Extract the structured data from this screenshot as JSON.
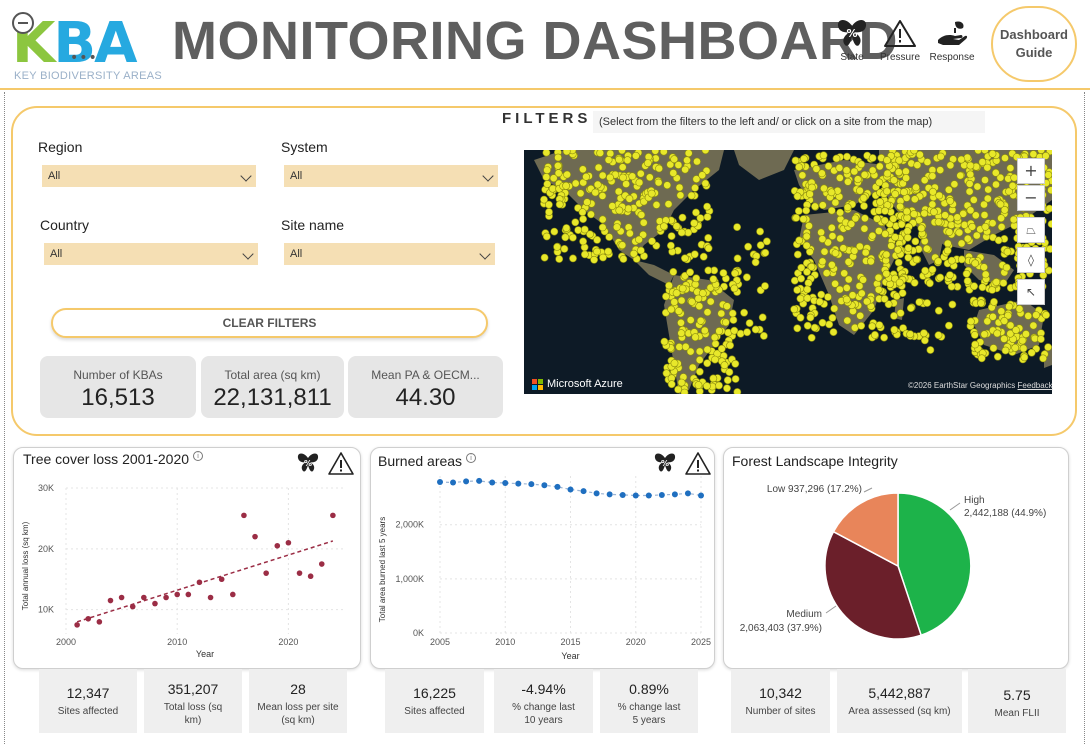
{
  "header": {
    "logo_text_k": "K",
    "logo_text_ba": "BA",
    "logo_subtitle": "KEY BIODIVERSITY AREAS",
    "title": "MONITORING DASHBOARD",
    "icons": [
      {
        "name": "butterfly-percent-icon",
        "label": "State"
      },
      {
        "name": "warning-triangle-icon",
        "label": "Pressure"
      },
      {
        "name": "hand-seedling-icon",
        "label": "Response"
      }
    ],
    "guide_line1": "Dashboard",
    "guide_line2": "Guide"
  },
  "filters": {
    "title": "FILTERS",
    "hint": "(Select from the filters to the left and/ or click on a site from the map)",
    "region_label": "Region",
    "region_value": "All",
    "system_label": "System",
    "system_value": "All",
    "country_label": "Country",
    "country_value": "All",
    "site_label": "Site name",
    "site_value": "All",
    "clear_label": "CLEAR FILTERS"
  },
  "kpis": [
    {
      "label": "Number of KBAs",
      "value": "16,513"
    },
    {
      "label": "Total area (sq km)",
      "value": "22,131,811"
    },
    {
      "label": "Mean PA & OECM...",
      "value": "44.30"
    }
  ],
  "map": {
    "brand": "Microsoft Azure",
    "attribution": "©2026 EarthStar Geographics",
    "feedback": "Feedback",
    "controls": [
      "+",
      "−",
      "⏢",
      "◊",
      "↖"
    ],
    "colors": {
      "ocean": "#0d1a26",
      "land": "#6e6a52",
      "site": "#e8e82a"
    }
  },
  "tree_cover": {
    "title": "Tree cover loss 2001-2020",
    "info": "i",
    "stats": [
      {
        "value": "12,347",
        "label": "Sites affected"
      },
      {
        "value": "351,207",
        "label": "Total loss (sq km)"
      },
      {
        "value": "28",
        "label": "Mean loss per site (sq km)"
      }
    ]
  },
  "burned": {
    "title": "Burned areas",
    "info": "i",
    "stats": [
      {
        "value": "16,225",
        "label": "Sites affected"
      },
      {
        "value": "-4.94%",
        "label": "% change last 10 years"
      },
      {
        "value": "0.89%",
        "label": "% change last 5 years"
      }
    ]
  },
  "fli": {
    "title": "Forest Landscape Integrity",
    "stats": [
      {
        "value": "10,342",
        "label": "Number of sites"
      },
      {
        "value": "5,442,887",
        "label": "Area assessed (sq km)"
      },
      {
        "value": "5.75",
        "label": "Mean FLII"
      }
    ]
  },
  "chart_data": [
    {
      "type": "scatter",
      "title": "Tree cover loss 2001-2020",
      "xlabel": "Year",
      "ylabel": "Total annual loss (sq km)",
      "xlim": [
        2000,
        2025
      ],
      "ylim": [
        6000,
        30000
      ],
      "xticks": [
        "2000",
        "2010",
        "2020"
      ],
      "yticks": [
        "10K",
        "20K",
        "30K"
      ],
      "trendline": true,
      "color": "#9b2d45",
      "x": [
        2001,
        2002,
        2003,
        2004,
        2005,
        2006,
        2007,
        2008,
        2009,
        2010,
        2011,
        2012,
        2013,
        2014,
        2015,
        2016,
        2017,
        2018,
        2019,
        2020,
        2021,
        2022,
        2023,
        2024
      ],
      "y": [
        7500,
        8500,
        8000,
        11500,
        12000,
        10500,
        12000,
        11000,
        12000,
        12500,
        12500,
        14500,
        12000,
        15000,
        12500,
        25500,
        22000,
        16000,
        20500,
        21000,
        16000,
        15500,
        17500,
        25500
      ]
    },
    {
      "type": "line",
      "title": "Burned areas",
      "xlabel": "Year",
      "ylabel": "Total area burned last 5 years",
      "xlim": [
        2005,
        2025
      ],
      "ylim": [
        0,
        2900
      ],
      "xticks": [
        "2005",
        "2010",
        "2015",
        "2020",
        "2025"
      ],
      "yticks": [
        "0K",
        "1,000K",
        "2,000K"
      ],
      "color": "#1f6fc0",
      "x": [
        2005,
        2006,
        2007,
        2008,
        2009,
        2010,
        2011,
        2012,
        2013,
        2014,
        2015,
        2016,
        2017,
        2018,
        2019,
        2020,
        2021,
        2022,
        2023,
        2024,
        2025
      ],
      "y": [
        2790,
        2780,
        2800,
        2810,
        2780,
        2770,
        2760,
        2750,
        2730,
        2700,
        2650,
        2620,
        2580,
        2560,
        2550,
        2540,
        2540,
        2550,
        2560,
        2580,
        2540
      ]
    },
    {
      "type": "pie",
      "title": "Forest Landscape Integrity",
      "labels": [
        "High",
        "Medium",
        "Low"
      ],
      "values": [
        2442188,
        2063403,
        937296
      ],
      "value_labels": [
        "2,442,188 (44.9%)",
        "2,063,403 (37.9%)",
        "937,296 (17.2%)"
      ],
      "colors": [
        "#1db34a",
        "#6b1f2a",
        "#e8855a"
      ]
    }
  ]
}
